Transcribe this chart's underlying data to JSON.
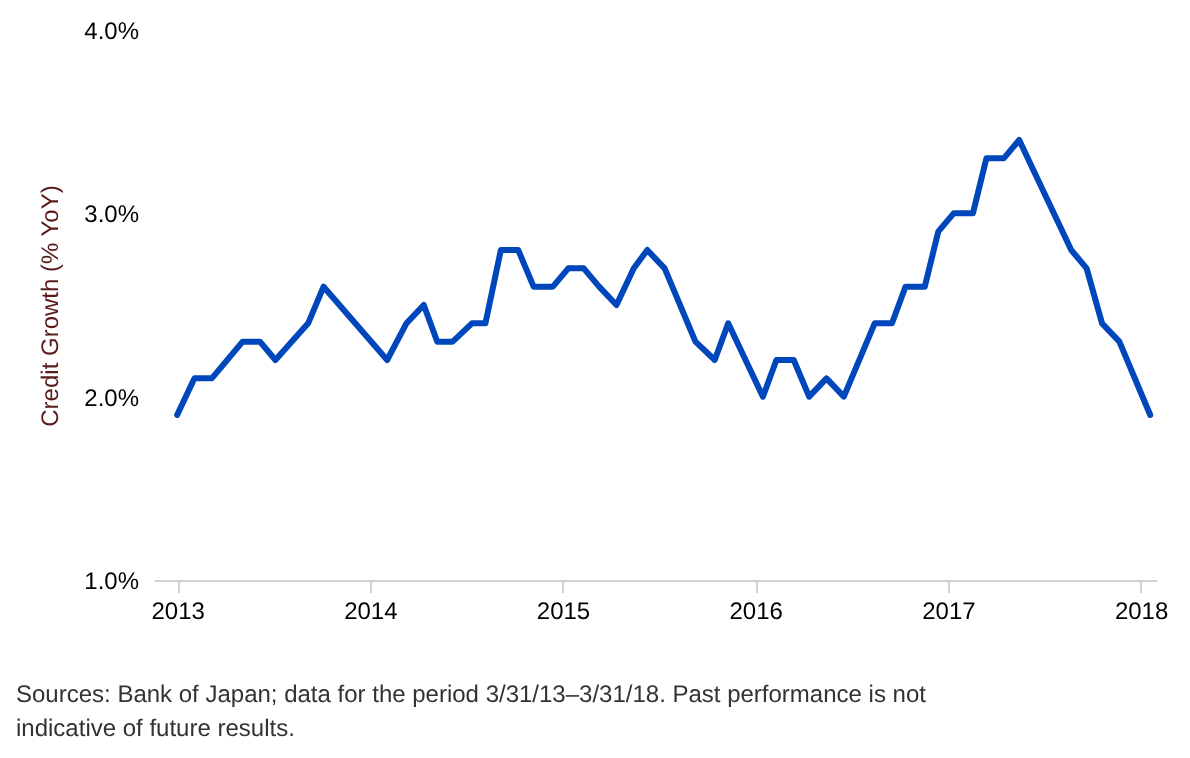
{
  "chart_data": {
    "type": "line",
    "ylabel": "Credit Growth (% YoY)",
    "x": [
      2013.0,
      2013.09,
      2013.18,
      2013.34,
      2013.43,
      2013.51,
      2013.68,
      2013.76,
      2014.09,
      2014.19,
      2014.28,
      2014.35,
      2014.43,
      2014.53,
      2014.6,
      2014.68,
      2014.77,
      2014.85,
      2014.95,
      2015.03,
      2015.11,
      2015.19,
      2015.28,
      2015.37,
      2015.44,
      2015.53,
      2015.69,
      2015.79,
      2015.86,
      2016.04,
      2016.11,
      2016.2,
      2016.28,
      2016.37,
      2016.46,
      2016.62,
      2016.71,
      2016.78,
      2016.88,
      2016.95,
      2017.03,
      2017.13,
      2017.2,
      2017.29,
      2017.37,
      2017.46,
      2017.64,
      2017.72,
      2017.8,
      2017.89,
      2018.05
    ],
    "series": [
      {
        "color": "#0047bb",
        "values": [
          1.9,
          2.1,
          2.1,
          2.3,
          2.3,
          2.2,
          2.4,
          2.6,
          2.2,
          2.4,
          2.5,
          2.3,
          2.3,
          2.4,
          2.4,
          2.8,
          2.8,
          2.6,
          2.6,
          2.7,
          2.7,
          2.6,
          2.5,
          2.7,
          2.8,
          2.7,
          2.3,
          2.2,
          2.4,
          2.0,
          2.2,
          2.2,
          2.0,
          2.1,
          2.0,
          2.4,
          2.4,
          2.6,
          2.6,
          2.9,
          3.0,
          3.0,
          3.3,
          3.3,
          3.4,
          3.2,
          2.8,
          2.7,
          2.4,
          2.3,
          1.9
        ]
      }
    ],
    "xlim": [
      2012.88,
      2018.08
    ],
    "xticks": [
      2013,
      2014,
      2015,
      2016,
      2017,
      2018
    ],
    "ylim": [
      1.0,
      4.0
    ],
    "yticks": [
      {
        "value": 1,
        "label": "1.0%"
      },
      {
        "value": 2,
        "label": "2.0%"
      },
      {
        "value": 3,
        "label": "3.0%"
      },
      {
        "value": 4,
        "label": "4.0%"
      }
    ],
    "grid": false,
    "marker": "none",
    "line_style": "solid",
    "annotations": [
      "Sources: Bank of Japan; data for the period 3/31/13–3/31/18. Past performance is not indicative of future results."
    ]
  }
}
